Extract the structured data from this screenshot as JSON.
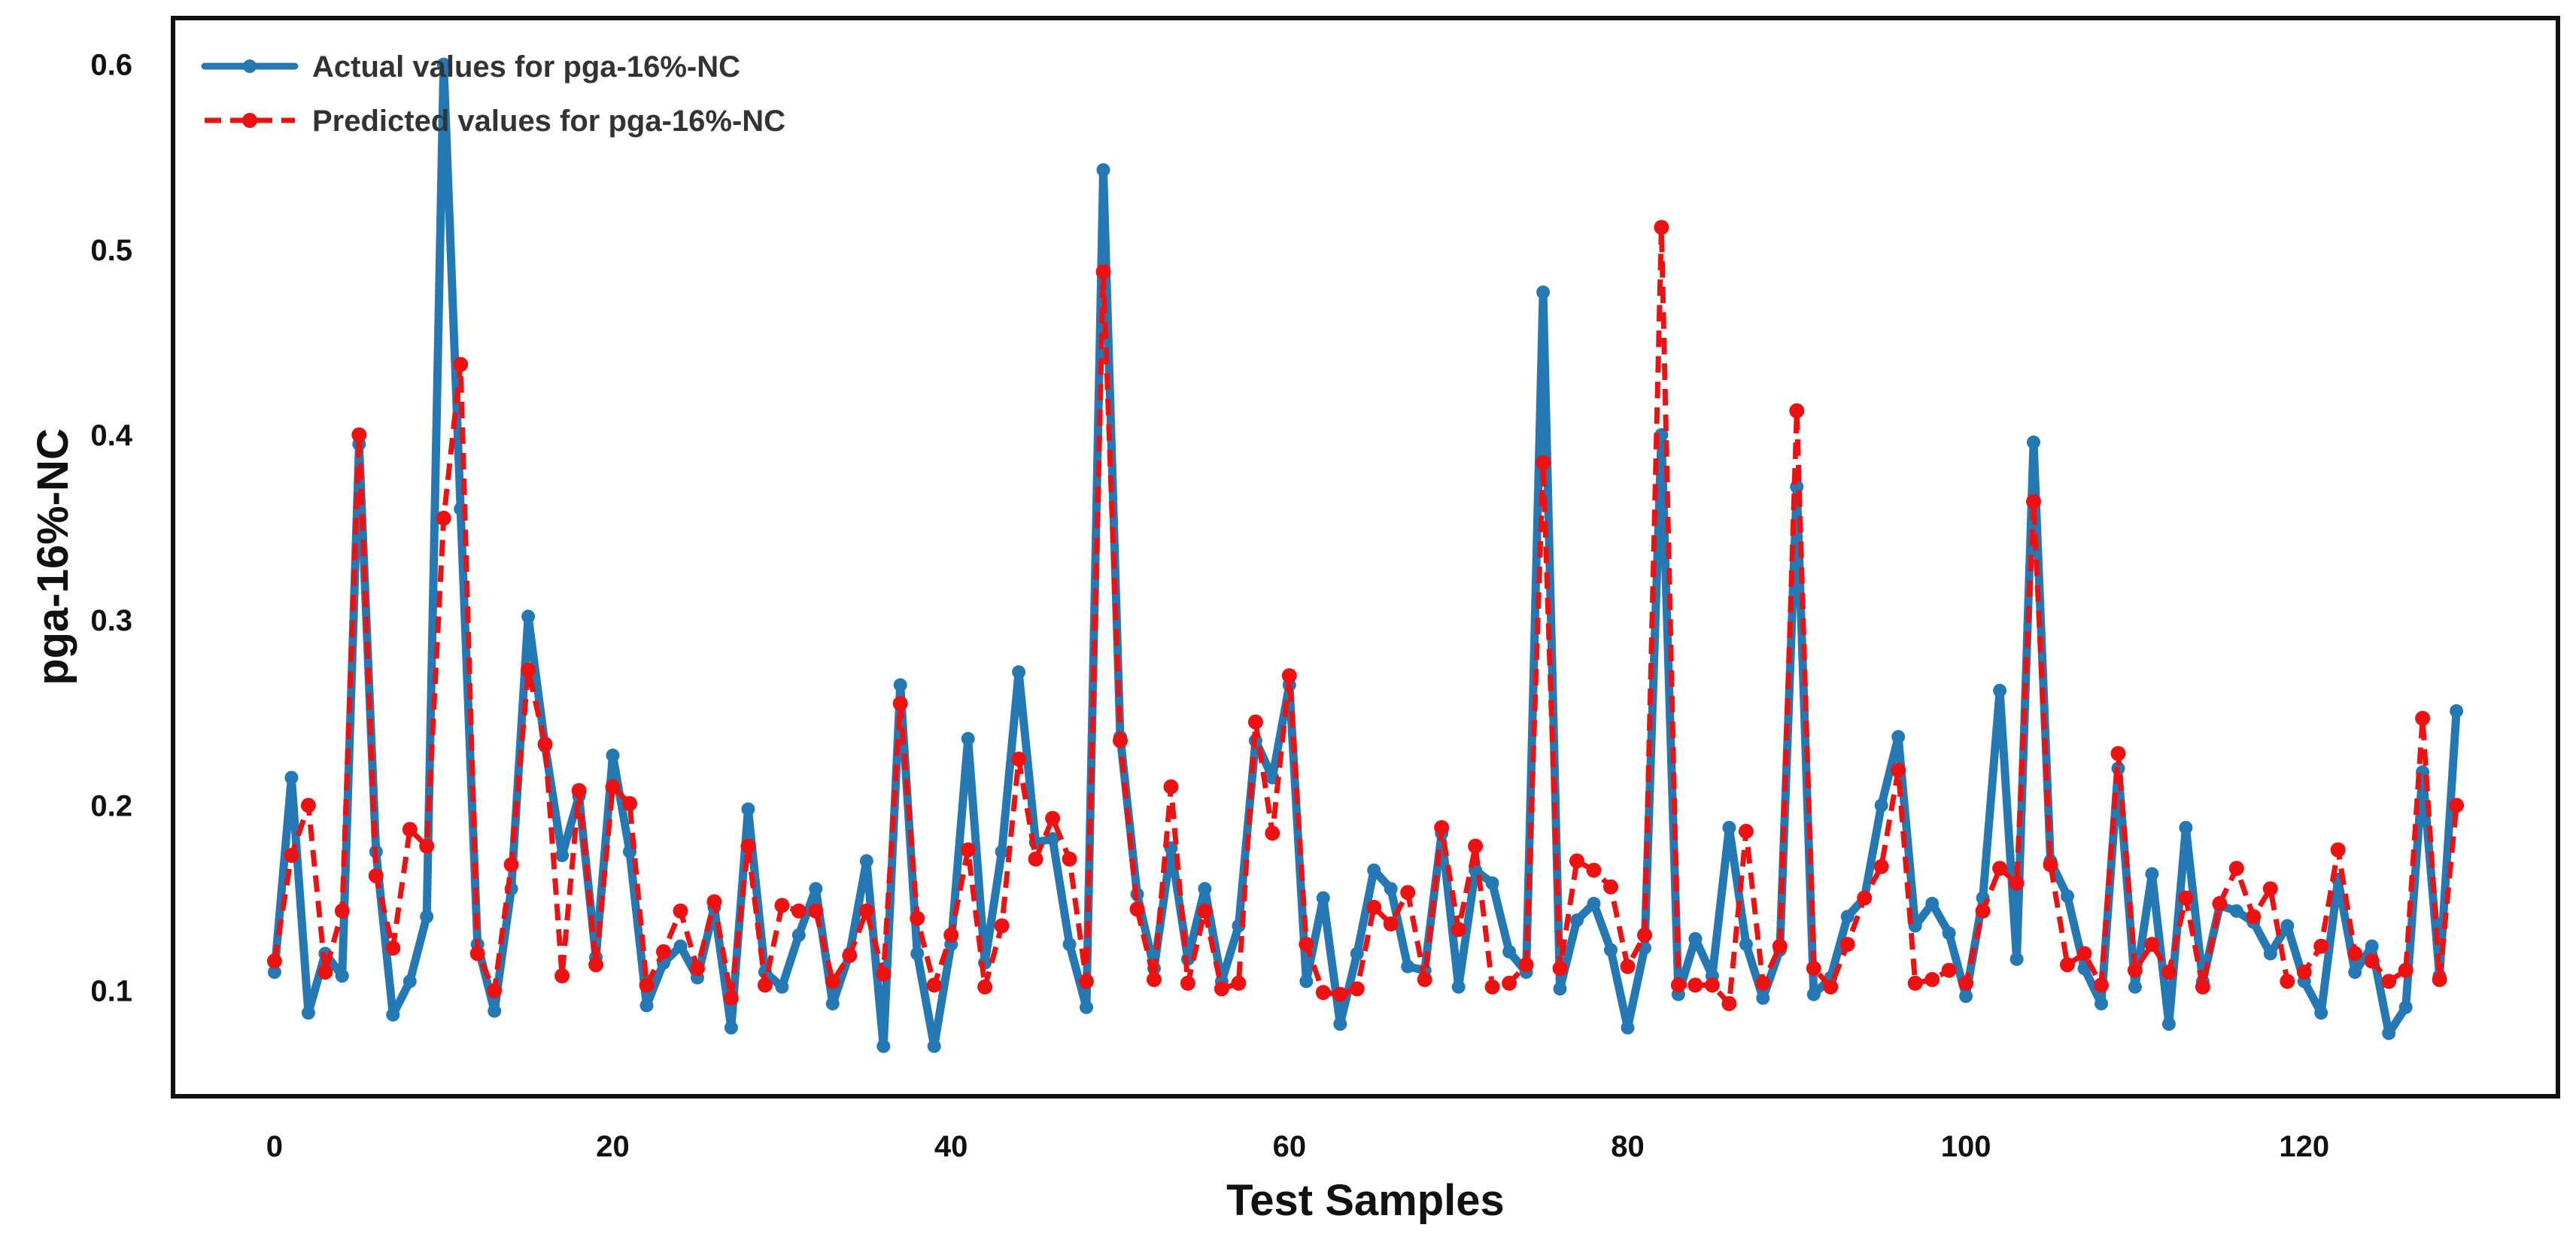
{
  "chart_data": {
    "type": "line",
    "title": "",
    "xlabel": "Test Samples",
    "ylabel": "pga-16%-NC",
    "xlim": [
      -6,
      135
    ],
    "ylim": [
      0.043,
      0.625
    ],
    "xticks": [
      0,
      20,
      40,
      60,
      80,
      100,
      120
    ],
    "yticks": [
      0.1,
      0.2,
      0.3,
      0.4,
      0.5,
      0.6
    ],
    "grid": false,
    "legend_position": "top-left",
    "series": [
      {
        "name": "Actual values for pga-16%-NC",
        "color": "#2478b4",
        "line_style": "solid",
        "values": [
          0.11,
          0.215,
          0.088,
          0.12,
          0.108,
          0.395,
          0.175,
          0.087,
          0.105,
          0.14,
          0.6,
          0.36,
          0.125,
          0.089,
          0.155,
          0.302,
          0.232,
          0.173,
          0.205,
          0.118,
          0.227,
          0.175,
          0.092,
          0.115,
          0.124,
          0.107,
          0.145,
          0.08,
          0.198,
          0.11,
          0.102,
          0.13,
          0.155,
          0.093,
          0.12,
          0.17,
          0.07,
          0.265,
          0.12,
          0.07,
          0.125,
          0.236,
          0.115,
          0.175,
          0.272,
          0.18,
          0.182,
          0.125,
          0.091,
          0.543,
          0.237,
          0.152,
          0.112,
          0.177,
          0.117,
          0.155,
          0.105,
          0.135,
          0.235,
          0.215,
          0.265,
          0.105,
          0.15,
          0.082,
          0.12,
          0.165,
          0.155,
          0.113,
          0.111,
          0.185,
          0.102,
          0.165,
          0.158,
          0.121,
          0.11,
          0.477,
          0.101,
          0.138,
          0.147,
          0.122,
          0.08,
          0.123,
          0.4,
          0.098,
          0.128,
          0.108,
          0.188,
          0.125,
          0.096,
          0.122,
          0.372,
          0.098,
          0.107,
          0.14,
          0.15,
          0.2,
          0.237,
          0.135,
          0.147,
          0.131,
          0.097,
          0.15,
          0.262,
          0.117,
          0.396,
          0.17,
          0.151,
          0.112,
          0.093,
          0.22,
          0.102,
          0.163,
          0.082,
          0.188,
          0.105,
          0.146,
          0.143,
          0.137,
          0.12,
          0.135,
          0.105,
          0.088,
          0.16,
          0.11,
          0.124,
          0.077,
          0.091,
          0.218,
          0.108,
          0.251
        ]
      },
      {
        "name": "Predicted values for pga-16%-NC",
        "color": "#ee1111",
        "line_style": "dashed",
        "values": [
          0.116,
          0.173,
          0.2,
          0.11,
          0.143,
          0.4,
          0.162,
          0.123,
          0.187,
          0.178,
          0.355,
          0.438,
          0.12,
          0.1,
          0.168,
          0.273,
          0.233,
          0.108,
          0.208,
          0.114,
          0.21,
          0.201,
          0.103,
          0.121,
          0.143,
          0.112,
          0.148,
          0.096,
          0.178,
          0.103,
          0.146,
          0.143,
          0.143,
          0.105,
          0.119,
          0.143,
          0.109,
          0.255,
          0.139,
          0.103,
          0.13,
          0.176,
          0.102,
          0.135,
          0.225,
          0.171,
          0.193,
          0.171,
          0.105,
          0.488,
          0.235,
          0.144,
          0.106,
          0.21,
          0.104,
          0.143,
          0.101,
          0.104,
          0.245,
          0.185,
          0.27,
          0.125,
          0.099,
          0.098,
          0.101,
          0.145,
          0.136,
          0.153,
          0.106,
          0.188,
          0.133,
          0.178,
          0.102,
          0.104,
          0.114,
          0.385,
          0.112,
          0.17,
          0.165,
          0.156,
          0.113,
          0.13,
          0.512,
          0.103,
          0.103,
          0.103,
          0.093,
          0.186,
          0.104,
          0.124,
          0.413,
          0.112,
          0.102,
          0.125,
          0.15,
          0.167,
          0.219,
          0.104,
          0.106,
          0.111,
          0.104,
          0.143,
          0.166,
          0.158,
          0.364,
          0.168,
          0.114,
          0.12,
          0.103,
          0.228,
          0.111,
          0.125,
          0.11,
          0.15,
          0.102,
          0.147,
          0.166,
          0.14,
          0.155,
          0.105,
          0.11,
          0.124,
          0.176,
          0.12,
          0.116,
          0.105,
          0.111,
          0.247,
          0.106,
          0.2
        ]
      }
    ]
  }
}
